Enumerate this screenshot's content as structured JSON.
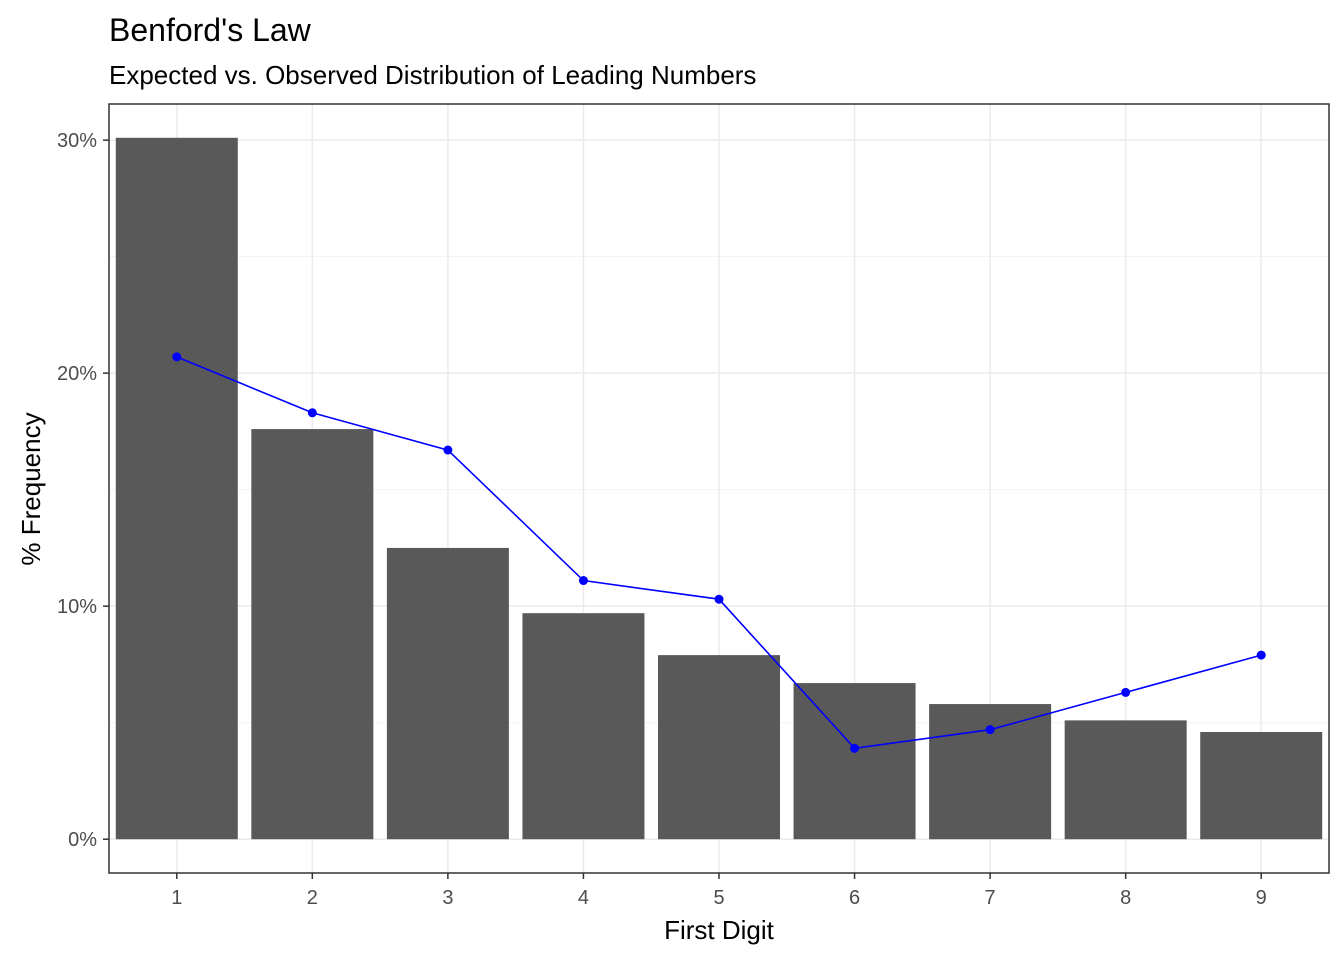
{
  "chart_data": {
    "type": "bar",
    "title": "Benford's Law",
    "subtitle": "Expected vs. Observed Distribution of Leading Numbers",
    "xlabel": "First Digit",
    "ylabel": "% Frequency",
    "categories": [
      "1",
      "2",
      "3",
      "4",
      "5",
      "6",
      "7",
      "8",
      "9"
    ],
    "series": [
      {
        "type": "bar",
        "values": [
          30.1,
          17.6,
          12.5,
          9.7,
          7.9,
          6.7,
          5.8,
          5.1,
          4.6
        ],
        "color": "#595959"
      },
      {
        "type": "line",
        "values": [
          20.7,
          18.3,
          16.7,
          11.1,
          10.3,
          3.9,
          4.7,
          6.3,
          7.9
        ],
        "color": "#0000ff"
      }
    ],
    "ylim": [
      -1.45,
      31.55
    ],
    "yticks": [
      0,
      10,
      20,
      30
    ],
    "ytick_labels": [
      "0%",
      "10%",
      "20%",
      "30%"
    ],
    "grid": true,
    "theme": "bw"
  }
}
